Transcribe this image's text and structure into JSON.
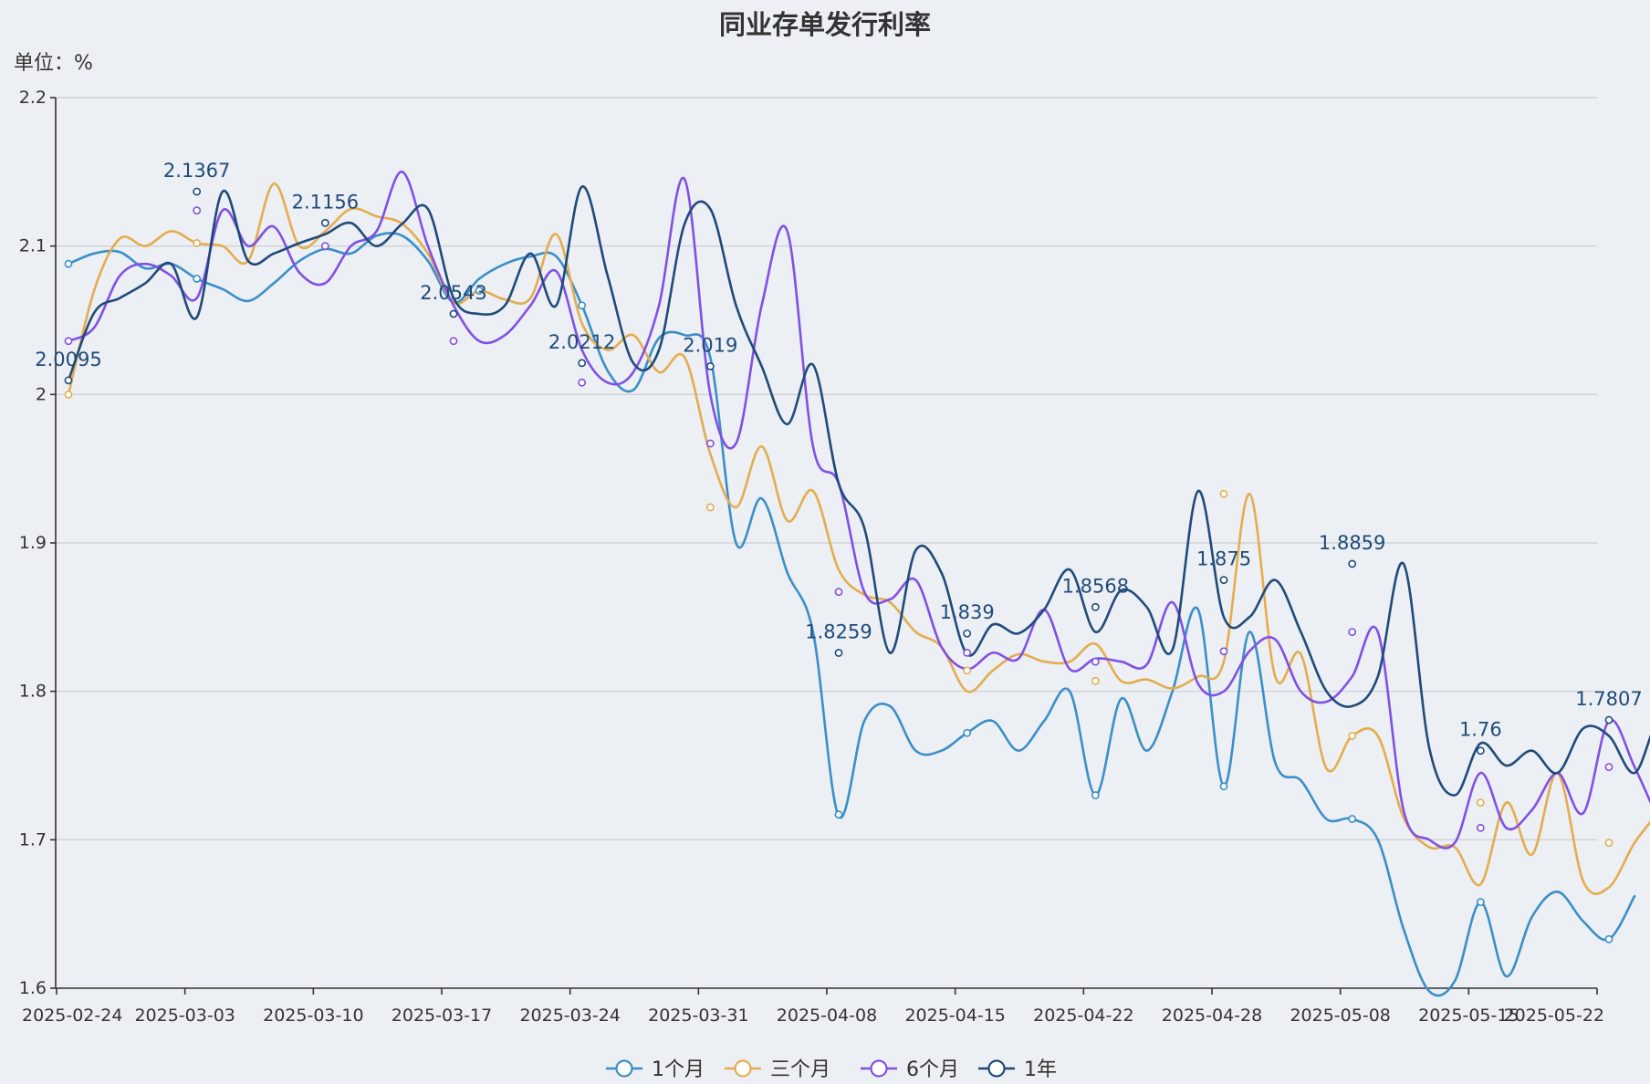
{
  "chart_data": {
    "type": "line",
    "title": "同业存单发行利率",
    "unit_label": "单位：%",
    "ylim": [
      1.6,
      2.2
    ],
    "y_ticks": [
      "1.6",
      "1.7",
      "1.8",
      "1.9",
      "2",
      "2.1",
      "2.2"
    ],
    "x_ticks": [
      "2025-02-24",
      "2025-03-03",
      "2025-03-10",
      "2025-03-17",
      "2025-03-24",
      "2025-03-31",
      "2025-04-08",
      "2025-04-15",
      "2025-04-22",
      "2025-04-28",
      "2025-05-08",
      "2025-05-15",
      "2025-05-22"
    ],
    "grid": true,
    "legend_position": "bottom",
    "series": [
      {
        "name": "1个月",
        "color": "#3a8fc8",
        "values": [
          [
            0,
            2.088
          ],
          [
            0.2,
            2.095
          ],
          [
            0.4,
            2.096
          ],
          [
            0.6,
            2.085
          ],
          [
            0.8,
            2.088
          ],
          [
            1.0,
            2.078
          ],
          [
            1.2,
            2.071
          ],
          [
            1.4,
            2.063
          ],
          [
            1.6,
            2.075
          ],
          [
            1.8,
            2.09
          ],
          [
            2.0,
            2.098
          ],
          [
            2.2,
            2.095
          ],
          [
            2.4,
            2.107
          ],
          [
            2.6,
            2.107
          ],
          [
            2.8,
            2.09
          ],
          [
            3.0,
            2.062
          ],
          [
            3.2,
            2.078
          ],
          [
            3.4,
            2.088
          ],
          [
            3.6,
            2.093
          ],
          [
            3.8,
            2.093
          ],
          [
            4.0,
            2.06
          ],
          [
            4.2,
            2.016
          ],
          [
            4.4,
            2.003
          ],
          [
            4.6,
            2.038
          ],
          [
            4.8,
            2.04
          ],
          [
            5.0,
            2.025
          ],
          [
            5.2,
            1.9
          ],
          [
            5.4,
            1.93
          ],
          [
            5.6,
            1.88
          ],
          [
            5.8,
            1.84
          ],
          [
            6.0,
            1.716
          ],
          [
            6.2,
            1.78
          ],
          [
            6.4,
            1.79
          ],
          [
            6.6,
            1.76
          ],
          [
            6.8,
            1.76
          ],
          [
            7.0,
            1.772
          ],
          [
            7.2,
            1.78
          ],
          [
            7.4,
            1.76
          ],
          [
            7.6,
            1.78
          ],
          [
            7.8,
            1.8
          ],
          [
            8.0,
            1.73
          ],
          [
            8.2,
            1.795
          ],
          [
            8.4,
            1.76
          ],
          [
            8.6,
            1.8
          ],
          [
            8.8,
            1.855
          ],
          [
            9.0,
            1.736
          ],
          [
            9.2,
            1.84
          ],
          [
            9.4,
            1.752
          ],
          [
            9.6,
            1.74
          ],
          [
            9.8,
            1.714
          ],
          [
            10.0,
            1.714
          ],
          [
            10.2,
            1.7
          ],
          [
            10.4,
            1.64
          ],
          [
            10.6,
            1.598
          ],
          [
            10.8,
            1.605
          ],
          [
            11.0,
            1.658
          ],
          [
            11.2,
            1.608
          ],
          [
            11.4,
            1.648
          ],
          [
            11.6,
            1.665
          ],
          [
            11.8,
            1.645
          ],
          [
            12.0,
            1.633
          ],
          [
            12.2,
            1.662
          ]
        ]
      },
      {
        "name": "三个月",
        "color": "#e3ad4f",
        "values": [
          [
            0,
            2.0
          ],
          [
            0.2,
            2.07
          ],
          [
            0.4,
            2.105
          ],
          [
            0.6,
            2.1
          ],
          [
            0.8,
            2.11
          ],
          [
            1.0,
            2.102
          ],
          [
            1.2,
            2.1
          ],
          [
            1.4,
            2.09
          ],
          [
            1.6,
            2.142
          ],
          [
            1.8,
            2.1
          ],
          [
            2.0,
            2.11
          ],
          [
            2.2,
            2.125
          ],
          [
            2.4,
            2.12
          ],
          [
            2.6,
            2.115
          ],
          [
            2.8,
            2.095
          ],
          [
            3.0,
            2.062
          ],
          [
            3.2,
            2.07
          ],
          [
            3.4,
            2.064
          ],
          [
            3.6,
            2.065
          ],
          [
            3.8,
            2.108
          ],
          [
            4.0,
            2.048
          ],
          [
            4.2,
            2.03
          ],
          [
            4.4,
            2.04
          ],
          [
            4.6,
            2.015
          ],
          [
            4.8,
            2.025
          ],
          [
            5.0,
            1.96
          ],
          [
            5.2,
            1.924
          ],
          [
            5.4,
            1.965
          ],
          [
            5.6,
            1.915
          ],
          [
            5.8,
            1.935
          ],
          [
            6.0,
            1.882
          ],
          [
            6.2,
            1.865
          ],
          [
            6.4,
            1.86
          ],
          [
            6.6,
            1.84
          ],
          [
            6.8,
            1.83
          ],
          [
            7.0,
            1.8
          ],
          [
            7.2,
            1.814
          ],
          [
            7.4,
            1.825
          ],
          [
            7.6,
            1.82
          ],
          [
            7.8,
            1.82
          ],
          [
            8.0,
            1.832
          ],
          [
            8.2,
            1.807
          ],
          [
            8.4,
            1.808
          ],
          [
            8.6,
            1.802
          ],
          [
            8.8,
            1.81
          ],
          [
            9.0,
            1.82
          ],
          [
            9.2,
            1.933
          ],
          [
            9.4,
            1.81
          ],
          [
            9.6,
            1.825
          ],
          [
            9.8,
            1.748
          ],
          [
            10.0,
            1.77
          ],
          [
            10.2,
            1.77
          ],
          [
            10.4,
            1.715
          ],
          [
            10.6,
            1.695
          ],
          [
            10.8,
            1.695
          ],
          [
            11.0,
            1.67
          ],
          [
            11.2,
            1.725
          ],
          [
            11.4,
            1.69
          ],
          [
            11.6,
            1.745
          ],
          [
            11.8,
            1.672
          ],
          [
            12.0,
            1.668
          ],
          [
            12.2,
            1.698
          ],
          [
            12.4,
            1.72
          ]
        ]
      },
      {
        "name": "6个月",
        "color": "#8150e4",
        "values": [
          [
            0,
            2.036
          ],
          [
            0.2,
            2.045
          ],
          [
            0.4,
            2.08
          ],
          [
            0.6,
            2.088
          ],
          [
            0.8,
            2.08
          ],
          [
            1.0,
            2.065
          ],
          [
            1.2,
            2.124
          ],
          [
            1.4,
            2.1
          ],
          [
            1.6,
            2.113
          ],
          [
            1.8,
            2.082
          ],
          [
            2.0,
            2.075
          ],
          [
            2.2,
            2.1
          ],
          [
            2.4,
            2.11
          ],
          [
            2.6,
            2.15
          ],
          [
            2.8,
            2.1
          ],
          [
            3.0,
            2.06
          ],
          [
            3.2,
            2.036
          ],
          [
            3.4,
            2.04
          ],
          [
            3.6,
            2.06
          ],
          [
            3.8,
            2.083
          ],
          [
            4.0,
            2.03
          ],
          [
            4.2,
            2.008
          ],
          [
            4.4,
            2.015
          ],
          [
            4.6,
            2.06
          ],
          [
            4.8,
            2.145
          ],
          [
            5.0,
            2.0
          ],
          [
            5.2,
            1.967
          ],
          [
            5.4,
            2.06
          ],
          [
            5.6,
            2.11
          ],
          [
            5.8,
            1.965
          ],
          [
            6.0,
            1.94
          ],
          [
            6.2,
            1.867
          ],
          [
            6.4,
            1.862
          ],
          [
            6.6,
            1.875
          ],
          [
            6.8,
            1.83
          ],
          [
            7.0,
            1.815
          ],
          [
            7.2,
            1.826
          ],
          [
            7.4,
            1.822
          ],
          [
            7.6,
            1.855
          ],
          [
            7.8,
            1.815
          ],
          [
            8.0,
            1.822
          ],
          [
            8.2,
            1.82
          ],
          [
            8.4,
            1.818
          ],
          [
            8.6,
            1.86
          ],
          [
            8.8,
            1.805
          ],
          [
            9.0,
            1.8
          ],
          [
            9.2,
            1.827
          ],
          [
            9.4,
            1.835
          ],
          [
            9.6,
            1.8
          ],
          [
            9.8,
            1.793
          ],
          [
            10.0,
            1.81
          ],
          [
            10.2,
            1.84
          ],
          [
            10.4,
            1.72
          ],
          [
            10.6,
            1.7
          ],
          [
            10.8,
            1.698
          ],
          [
            11.0,
            1.745
          ],
          [
            11.2,
            1.708
          ],
          [
            11.4,
            1.72
          ],
          [
            11.6,
            1.745
          ],
          [
            11.8,
            1.718
          ],
          [
            12.0,
            1.78
          ],
          [
            12.2,
            1.749
          ],
          [
            12.4,
            1.71
          ]
        ]
      },
      {
        "name": "1年",
        "color": "#1f4a7a",
        "values": [
          [
            0,
            2.0095
          ],
          [
            0.2,
            2.055
          ],
          [
            0.4,
            2.065
          ],
          [
            0.6,
            2.075
          ],
          [
            0.8,
            2.088
          ],
          [
            1.0,
            2.052
          ],
          [
            1.2,
            2.1367
          ],
          [
            1.4,
            2.09
          ],
          [
            1.6,
            2.095
          ],
          [
            1.8,
            2.102
          ],
          [
            2.0,
            2.108
          ],
          [
            2.2,
            2.1156
          ],
          [
            2.4,
            2.1
          ],
          [
            2.6,
            2.115
          ],
          [
            2.8,
            2.125
          ],
          [
            3.0,
            2.065
          ],
          [
            3.2,
            2.0543
          ],
          [
            3.4,
            2.06
          ],
          [
            3.6,
            2.095
          ],
          [
            3.8,
            2.06
          ],
          [
            4.0,
            2.14
          ],
          [
            4.2,
            2.08
          ],
          [
            4.4,
            2.0212
          ],
          [
            4.6,
            2.03
          ],
          [
            4.8,
            2.115
          ],
          [
            5.0,
            2.125
          ],
          [
            5.2,
            2.06
          ],
          [
            5.4,
            2.019
          ],
          [
            5.6,
            1.98
          ],
          [
            5.8,
            2.02
          ],
          [
            6.0,
            1.94
          ],
          [
            6.2,
            1.91
          ],
          [
            6.4,
            1.8259
          ],
          [
            6.6,
            1.895
          ],
          [
            6.8,
            1.88
          ],
          [
            7.0,
            1.825
          ],
          [
            7.2,
            1.845
          ],
          [
            7.4,
            1.839
          ],
          [
            7.6,
            1.855
          ],
          [
            7.8,
            1.882
          ],
          [
            8.0,
            1.84
          ],
          [
            8.2,
            1.868
          ],
          [
            8.4,
            1.8568
          ],
          [
            8.6,
            1.828
          ],
          [
            8.8,
            1.935
          ],
          [
            9.0,
            1.85
          ],
          [
            9.2,
            1.85
          ],
          [
            9.4,
            1.875
          ],
          [
            9.6,
            1.84
          ],
          [
            9.8,
            1.8
          ],
          [
            10.0,
            1.79
          ],
          [
            10.2,
            1.81
          ],
          [
            10.4,
            1.8859
          ],
          [
            10.6,
            1.762
          ],
          [
            10.8,
            1.73
          ],
          [
            11.0,
            1.765
          ],
          [
            11.2,
            1.75
          ],
          [
            11.4,
            1.76
          ],
          [
            11.6,
            1.745
          ],
          [
            11.8,
            1.775
          ],
          [
            12.0,
            1.77
          ],
          [
            12.2,
            1.745
          ],
          [
            12.4,
            1.7807
          ],
          [
            12.6,
            1.745
          ]
        ]
      }
    ],
    "markers": [
      {
        "series": 0,
        "x": 0,
        "y": 2.088
      },
      {
        "series": 0,
        "x": 1.0,
        "y": 2.078
      },
      {
        "series": 0,
        "x": 3.2,
        "y": 2.07
      },
      {
        "series": 0,
        "x": 4.0,
        "y": 2.06
      },
      {
        "series": 0,
        "x": 6.0,
        "y": 1.717
      },
      {
        "series": 0,
        "x": 7.0,
        "y": 1.772
      },
      {
        "series": 0,
        "x": 8.0,
        "y": 1.73
      },
      {
        "series": 0,
        "x": 9.0,
        "y": 1.736
      },
      {
        "series": 0,
        "x": 10.0,
        "y": 1.714
      },
      {
        "series": 0,
        "x": 11.0,
        "y": 1.658
      },
      {
        "series": 0,
        "x": 12.0,
        "y": 1.633
      },
      {
        "series": 1,
        "x": 0,
        "y": 2.0
      },
      {
        "series": 1,
        "x": 1.0,
        "y": 2.102
      },
      {
        "series": 1,
        "x": 5.0,
        "y": 1.924
      },
      {
        "series": 1,
        "x": 7.0,
        "y": 1.814
      },
      {
        "series": 1,
        "x": 8.0,
        "y": 1.807
      },
      {
        "series": 1,
        "x": 9.0,
        "y": 1.933
      },
      {
        "series": 1,
        "x": 10.0,
        "y": 1.77
      },
      {
        "series": 1,
        "x": 11.0,
        "y": 1.725
      },
      {
        "series": 1,
        "x": 12.0,
        "y": 1.698
      },
      {
        "series": 2,
        "x": 0,
        "y": 2.036
      },
      {
        "series": 2,
        "x": 1.0,
        "y": 2.124
      },
      {
        "series": 2,
        "x": 2.0,
        "y": 2.1
      },
      {
        "series": 2,
        "x": 3.0,
        "y": 2.036
      },
      {
        "series": 2,
        "x": 4.0,
        "y": 2.008
      },
      {
        "series": 2,
        "x": 5.0,
        "y": 1.967
      },
      {
        "series": 2,
        "x": 6.0,
        "y": 1.867
      },
      {
        "series": 2,
        "x": 7.0,
        "y": 1.826
      },
      {
        "series": 2,
        "x": 8.0,
        "y": 1.82
      },
      {
        "series": 2,
        "x": 9.0,
        "y": 1.827
      },
      {
        "series": 2,
        "x": 10.0,
        "y": 1.84
      },
      {
        "series": 2,
        "x": 11.0,
        "y": 1.708
      },
      {
        "series": 2,
        "x": 12.0,
        "y": 1.749
      }
    ],
    "annotations": [
      {
        "x": 0,
        "y": 2.0095,
        "text": "2.0095"
      },
      {
        "x": 1.0,
        "y": 2.1367,
        "text": "2.1367"
      },
      {
        "x": 2.0,
        "y": 2.1156,
        "text": "2.1156"
      },
      {
        "x": 3.0,
        "y": 2.0543,
        "text": "2.0543"
      },
      {
        "x": 4.0,
        "y": 2.0212,
        "text": "2.0212"
      },
      {
        "x": 5.0,
        "y": 2.019,
        "text": "2.019"
      },
      {
        "x": 6.0,
        "y": 1.8259,
        "text": "1.8259"
      },
      {
        "x": 7.0,
        "y": 1.839,
        "text": "1.839"
      },
      {
        "x": 8.0,
        "y": 1.8568,
        "text": "1.8568"
      },
      {
        "x": 9.0,
        "y": 1.875,
        "text": "1.875"
      },
      {
        "x": 10.0,
        "y": 1.8859,
        "text": "1.8859"
      },
      {
        "x": 11.0,
        "y": 1.76,
        "text": "1.76"
      },
      {
        "x": 12.0,
        "y": 1.7807,
        "text": "1.7807"
      }
    ]
  }
}
